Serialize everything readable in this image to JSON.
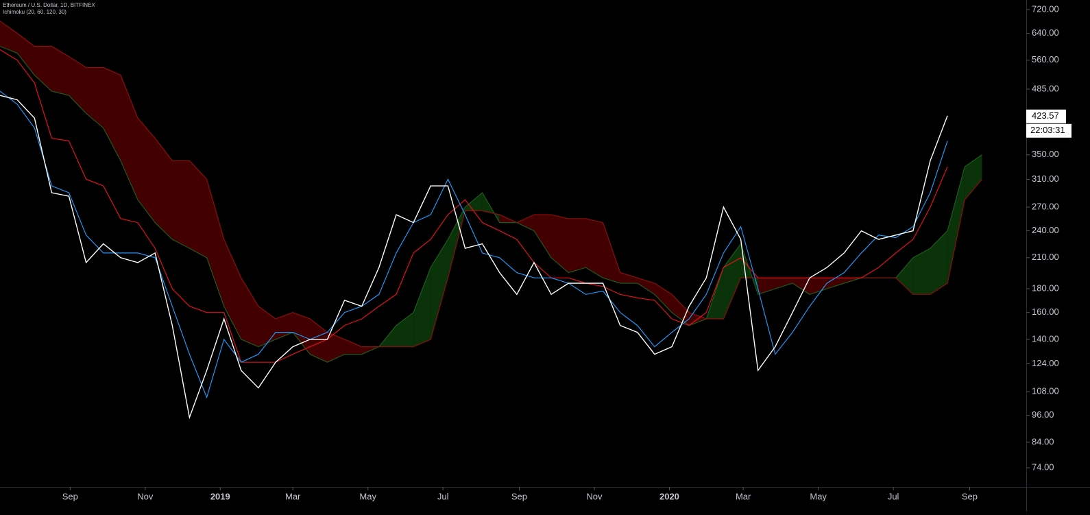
{
  "chart_data": {
    "type": "ichimoku",
    "title": "Ethereum / U.S. Dollar, 1D, BITFINEX",
    "subtitle": "Ichimoku (20, 60, 120, 30)",
    "x": [
      "2018-07-06",
      "2018-07-20",
      "2018-08-03",
      "2018-08-17",
      "2018-08-31",
      "2018-09-14",
      "2018-09-28",
      "2018-10-12",
      "2018-10-26",
      "2018-11-09",
      "2018-11-23",
      "2018-12-07",
      "2018-12-21",
      "2019-01-04",
      "2019-01-18",
      "2019-02-01",
      "2019-02-15",
      "2019-03-01",
      "2019-03-15",
      "2019-03-29",
      "2019-04-12",
      "2019-04-26",
      "2019-05-10",
      "2019-05-24",
      "2019-06-07",
      "2019-06-21",
      "2019-07-05",
      "2019-07-19",
      "2019-08-02",
      "2019-08-16",
      "2019-08-30",
      "2019-09-13",
      "2019-09-27",
      "2019-10-11",
      "2019-10-25",
      "2019-11-08",
      "2019-11-22",
      "2019-12-06",
      "2019-12-20",
      "2020-01-03",
      "2020-01-17",
      "2020-01-31",
      "2020-02-14",
      "2020-02-28",
      "2020-03-13",
      "2020-03-27",
      "2020-04-10",
      "2020-04-24",
      "2020-05-08",
      "2020-05-22",
      "2020-06-05",
      "2020-06-19",
      "2020-07-03",
      "2020-07-17",
      "2020-07-31",
      "2020-08-14",
      "2020-08-28",
      "2020-09-11"
    ],
    "series": [
      {
        "role": "price",
        "color": "#ffffff",
        "values": [
          470,
          460,
          420,
          290,
          285,
          205,
          225,
          210,
          205,
          215,
          150,
          95,
          120,
          155,
          120,
          110,
          125,
          135,
          140,
          140,
          170,
          165,
          200,
          260,
          250,
          300,
          300,
          220,
          225,
          195,
          175,
          205,
          175,
          185,
          185,
          185,
          150,
          145,
          130,
          135,
          165,
          190,
          270,
          230,
          120,
          135,
          160,
          190,
          200,
          215,
          240,
          230,
          235,
          240,
          340,
          425,
          null,
          null
        ]
      },
      {
        "role": "conversion",
        "color": "#2196f3",
        "values": [
          480,
          450,
          400,
          300,
          290,
          235,
          215,
          215,
          215,
          210,
          165,
          130,
          105,
          140,
          125,
          130,
          145,
          145,
          140,
          145,
          160,
          165,
          175,
          215,
          250,
          260,
          310,
          260,
          215,
          210,
          195,
          190,
          190,
          185,
          175,
          178,
          160,
          150,
          135,
          145,
          155,
          175,
          215,
          245,
          180,
          130,
          145,
          165,
          185,
          195,
          215,
          235,
          232,
          245,
          290,
          375,
          null,
          null
        ]
      },
      {
        "role": "base",
        "color": "#e0131a",
        "values": [
          590,
          560,
          500,
          380,
          375,
          310,
          300,
          255,
          250,
          220,
          180,
          165,
          160,
          160,
          125,
          125,
          125,
          130,
          135,
          140,
          150,
          155,
          165,
          175,
          215,
          230,
          260,
          280,
          250,
          240,
          230,
          205,
          190,
          190,
          185,
          182,
          175,
          172,
          170,
          155,
          150,
          160,
          200,
          210,
          190,
          190,
          190,
          190,
          190,
          190,
          190,
          200,
          215,
          230,
          270,
          330,
          null,
          null
        ]
      },
      {
        "role": "span-a",
        "color": "#1e5a1e",
        "values": [
          600,
          580,
          520,
          480,
          470,
          430,
          400,
          340,
          280,
          250,
          230,
          220,
          210,
          165,
          140,
          135,
          140,
          145,
          130,
          125,
          130,
          130,
          135,
          150,
          160,
          200,
          230,
          270,
          290,
          250,
          250,
          240,
          210,
          195,
          200,
          190,
          185,
          185,
          175,
          160,
          150,
          155,
          200,
          225,
          175,
          180,
          185,
          175,
          180,
          185,
          190,
          190,
          190,
          210,
          220,
          240,
          330,
          350
        ]
      },
      {
        "role": "span-b",
        "color": "#8a0f0f",
        "values": [
          680,
          640,
          600,
          600,
          570,
          540,
          540,
          520,
          420,
          380,
          340,
          340,
          310,
          230,
          190,
          165,
          155,
          160,
          155,
          145,
          140,
          135,
          135,
          135,
          135,
          140,
          190,
          265,
          265,
          260,
          250,
          260,
          260,
          255,
          255,
          250,
          195,
          190,
          185,
          175,
          160,
          155,
          155,
          190,
          190,
          190,
          190,
          190,
          190,
          190,
          190,
          190,
          190,
          175,
          175,
          185,
          280,
          310
        ]
      }
    ],
    "cloud_up_color": "#0a330a",
    "cloud_down_color": "#420000",
    "log_scale": true,
    "xlim": [
      "2018-07-06",
      "2020-10-17"
    ],
    "xticks": [
      {
        "value": "2018-09-01",
        "label": "Sep"
      },
      {
        "value": "2018-11-01",
        "label": "Nov"
      },
      {
        "value": "2019-01-01",
        "label": "2019"
      },
      {
        "value": "2019-03-01",
        "label": "Mar"
      },
      {
        "value": "2019-05-01",
        "label": "May"
      },
      {
        "value": "2019-07-01",
        "label": "Jul"
      },
      {
        "value": "2019-09-01",
        "label": "Sep"
      },
      {
        "value": "2019-11-01",
        "label": "Nov"
      },
      {
        "value": "2020-01-01",
        "label": "2020"
      },
      {
        "value": "2020-03-01",
        "label": "Mar"
      },
      {
        "value": "2020-05-01",
        "label": "May"
      },
      {
        "value": "2020-07-01",
        "label": "Jul"
      },
      {
        "value": "2020-09-01",
        "label": "Sep"
      }
    ],
    "ylim": [
      67.3,
      755
    ],
    "yticks": [
      {
        "value": 720,
        "label": "720.00"
      },
      {
        "value": 640,
        "label": "640.00"
      },
      {
        "value": 560,
        "label": "560.00"
      },
      {
        "value": 485,
        "label": "485.00"
      },
      {
        "value": 350,
        "label": "350.00"
      },
      {
        "value": 310,
        "label": "310.00"
      },
      {
        "value": 270,
        "label": "270.00"
      },
      {
        "value": 240,
        "label": "240.00"
      },
      {
        "value": 210,
        "label": "210.00"
      },
      {
        "value": 180,
        "label": "180.00"
      },
      {
        "value": 160,
        "label": "160.00"
      },
      {
        "value": 140,
        "label": "140.00"
      },
      {
        "value": 124,
        "label": "124.00"
      },
      {
        "value": 108,
        "label": "108.00"
      },
      {
        "value": 96,
        "label": "96.00"
      },
      {
        "value": 84,
        "label": "84.00"
      },
      {
        "value": 74,
        "label": "74.00"
      }
    ],
    "last_price": 423.57,
    "countdown": "22:03:31"
  }
}
